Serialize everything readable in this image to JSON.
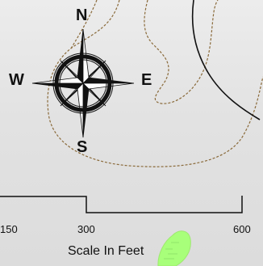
{
  "compass": {
    "north": "N",
    "south": "S",
    "east": "E",
    "west": "W"
  },
  "scale_bar": {
    "tick_labels": [
      "150",
      "300",
      "600"
    ],
    "title": "Scale In Feet"
  },
  "colors": {
    "background": "#e2e2e2",
    "contour": "#8a6a3a",
    "road": "#111111",
    "vegetation": "#a8ff7a"
  },
  "icons": [
    "compass-rose-icon"
  ]
}
